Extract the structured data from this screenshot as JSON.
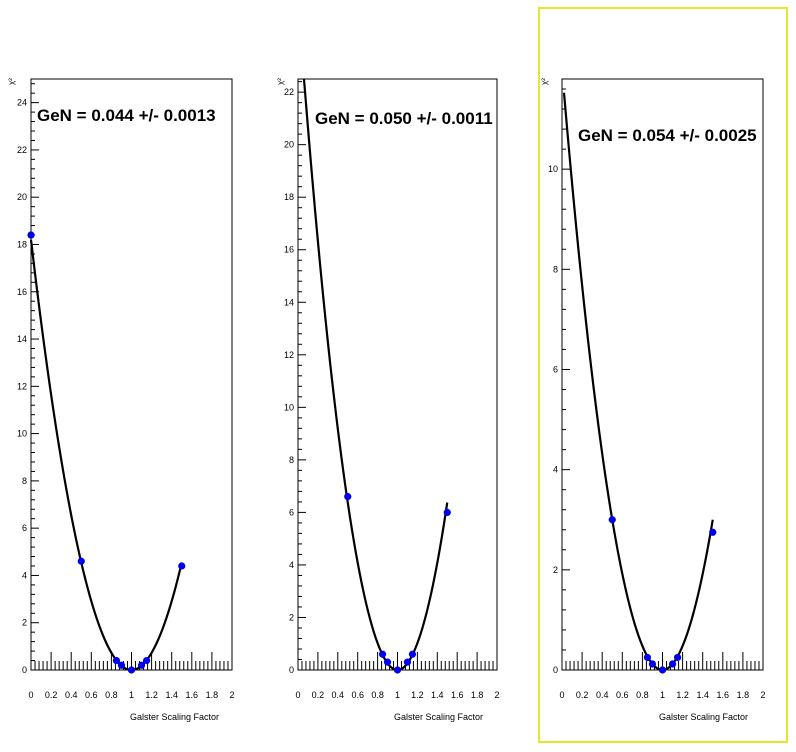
{
  "colors": {
    "background": "#ffffff",
    "frame": "#000000",
    "curve": "#000000",
    "marker": "#0000ee",
    "selected_pad_border": "#e6e62a"
  },
  "chart_data": [
    {
      "type": "scatter",
      "annotation": "GeN = 0.044 +/- 0.0013",
      "xlabel": "Galster Scaling Factor",
      "ylabel": "χ²",
      "xlim": [
        0,
        2
      ],
      "ylim": [
        0,
        25
      ],
      "x_ticks": [
        0,
        0.2,
        0.4,
        0.6,
        0.8,
        1,
        1.2,
        1.4,
        1.6,
        1.8,
        2
      ],
      "x_tick_labels": [
        "0",
        "0.2",
        "0.4",
        "0.6",
        "0.8",
        "1",
        "1.2",
        "1.4",
        "1.6",
        "1.8",
        "2"
      ],
      "y_ticks": [
        0,
        2,
        4,
        6,
        8,
        10,
        12,
        14,
        16,
        18,
        20,
        22,
        24
      ],
      "y_tick_labels": [
        "0",
        "2",
        "4",
        "6",
        "8",
        "10",
        "12",
        "14",
        "16",
        "18",
        "20",
        "22",
        "24"
      ],
      "selected": false,
      "series": [
        {
          "kind": "points",
          "x": [
            0,
            0.5,
            0.85,
            0.9,
            1.0,
            1.1,
            1.15,
            1.5
          ],
          "y": [
            18.4,
            4.6,
            0.4,
            0.2,
            0.0,
            0.2,
            0.4,
            4.4
          ]
        },
        {
          "kind": "fit",
          "x_range": [
            0,
            1.5
          ],
          "min_x": 1.0,
          "coefficient": 18.2
        }
      ]
    },
    {
      "type": "scatter",
      "annotation": "GeN = 0.050 +/- 0.0011",
      "xlabel": "Galster Scaling Factor",
      "ylabel": "χ²",
      "xlim": [
        0,
        2
      ],
      "ylim": [
        0,
        22.5
      ],
      "x_ticks": [
        0,
        0.2,
        0.4,
        0.6,
        0.8,
        1,
        1.2,
        1.4,
        1.6,
        1.8,
        2
      ],
      "x_tick_labels": [
        "0",
        "0.2",
        "0.4",
        "0.6",
        "0.8",
        "1",
        "1.2",
        "1.4",
        "1.6",
        "1.8",
        "2"
      ],
      "y_ticks": [
        0,
        2,
        4,
        6,
        8,
        10,
        12,
        14,
        16,
        18,
        20,
        22
      ],
      "y_tick_labels": [
        "0",
        "2",
        "4",
        "6",
        "8",
        "10",
        "12",
        "14",
        "16",
        "18",
        "20",
        "22"
      ],
      "selected": false,
      "series": [
        {
          "kind": "points",
          "x": [
            0.5,
            0.85,
            0.9,
            1.0,
            1.1,
            1.15,
            1.5
          ],
          "y": [
            6.6,
            0.6,
            0.3,
            0.0,
            0.3,
            0.6,
            6.0
          ]
        },
        {
          "kind": "fit",
          "x_range": [
            0.06,
            1.5
          ],
          "min_x": 1.0,
          "coefficient": 25.5
        }
      ]
    },
    {
      "type": "scatter",
      "annotation": "GeN = 0.054 +/- 0.0025",
      "xlabel": "Galster Scaling Factor",
      "ylabel": "χ²",
      "xlim": [
        0,
        2
      ],
      "ylim": [
        0,
        11.8
      ],
      "x_ticks": [
        0,
        0.2,
        0.4,
        0.6,
        0.8,
        1,
        1.2,
        1.4,
        1.6,
        1.8,
        2
      ],
      "x_tick_labels": [
        "0",
        "0.2",
        "0.4",
        "0.6",
        "0.8",
        "1",
        "1.2",
        "1.4",
        "1.6",
        "1.8",
        "2"
      ],
      "y_ticks": [
        0,
        2,
        4,
        6,
        8,
        10
      ],
      "y_tick_labels": [
        "0",
        "2",
        "4",
        "6",
        "8",
        "10"
      ],
      "selected": true,
      "series": [
        {
          "kind": "points",
          "x": [
            0.5,
            0.85,
            0.9,
            1.0,
            1.1,
            1.15,
            1.5
          ],
          "y": [
            3.0,
            0.25,
            0.12,
            0.0,
            0.12,
            0.25,
            2.75
          ]
        },
        {
          "kind": "fit",
          "x_range": [
            0.02,
            1.5
          ],
          "min_x": 1.0,
          "coefficient": 12.0
        }
      ]
    }
  ]
}
